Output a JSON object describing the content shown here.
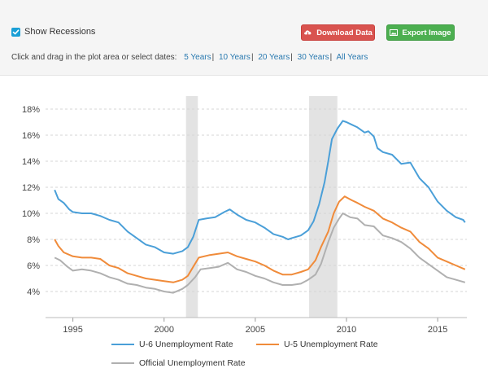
{
  "toolbar": {
    "show_recessions_label": "Show Recessions",
    "show_recessions_checked": true,
    "download_label": "Download Data",
    "export_label": "Export Image",
    "date_prompt": "Click and drag in the plot area or select dates:",
    "date_ranges": [
      "5 Years",
      "10 Years",
      "20 Years",
      "30 Years",
      "All Years"
    ],
    "download_color": "#d9534f",
    "export_color": "#4caf50",
    "link_color": "#2a7ab0",
    "icons": {
      "checkbox": "checkmark-icon",
      "download": "cloud-download-icon",
      "export": "image-icon"
    }
  },
  "chart_data": {
    "type": "line",
    "xlim": [
      1993.5,
      2016.6
    ],
    "ylim": [
      2,
      19
    ],
    "yticks": [
      4,
      6,
      8,
      10,
      12,
      14,
      16,
      18
    ],
    "ytick_labels": [
      "4%",
      "6%",
      "8%",
      "10%",
      "12%",
      "14%",
      "16%",
      "18%"
    ],
    "xticks": [
      1995,
      2000,
      2005,
      2010,
      2015
    ],
    "xtick_labels": [
      "1995",
      "2000",
      "2005",
      "2010",
      "2015"
    ],
    "grid": "horizontal-dashed",
    "recessions": [
      [
        2001.2,
        2001.85
      ],
      [
        2007.95,
        2009.5
      ]
    ],
    "recession_color": "#e3e3e3",
    "legend_position": "bottom",
    "series": [
      {
        "name": "U-6 Unemployment Rate",
        "color": "#4a9fd8",
        "points": [
          [
            1994.0,
            11.8
          ],
          [
            1994.2,
            11.1
          ],
          [
            1994.5,
            10.8
          ],
          [
            1994.8,
            10.3
          ],
          [
            1995.0,
            10.1
          ],
          [
            1995.5,
            10.0
          ],
          [
            1996.0,
            10.0
          ],
          [
            1996.5,
            9.8
          ],
          [
            1997.0,
            9.5
          ],
          [
            1997.5,
            9.3
          ],
          [
            1998.0,
            8.6
          ],
          [
            1998.5,
            8.1
          ],
          [
            1999.0,
            7.6
          ],
          [
            1999.5,
            7.4
          ],
          [
            2000.0,
            7.0
          ],
          [
            2000.5,
            6.9
          ],
          [
            2001.0,
            7.1
          ],
          [
            2001.3,
            7.4
          ],
          [
            2001.6,
            8.2
          ],
          [
            2001.9,
            9.5
          ],
          [
            2002.3,
            9.6
          ],
          [
            2002.8,
            9.7
          ],
          [
            2003.3,
            10.1
          ],
          [
            2003.6,
            10.3
          ],
          [
            2004.0,
            9.9
          ],
          [
            2004.5,
            9.5
          ],
          [
            2005.0,
            9.3
          ],
          [
            2005.5,
            8.9
          ],
          [
            2006.0,
            8.4
          ],
          [
            2006.5,
            8.2
          ],
          [
            2006.8,
            8.0
          ],
          [
            2007.0,
            8.1
          ],
          [
            2007.5,
            8.3
          ],
          [
            2007.9,
            8.7
          ],
          [
            2008.2,
            9.4
          ],
          [
            2008.5,
            10.7
          ],
          [
            2008.8,
            12.4
          ],
          [
            2009.0,
            14.0
          ],
          [
            2009.2,
            15.7
          ],
          [
            2009.5,
            16.5
          ],
          [
            2009.8,
            17.1
          ],
          [
            2010.0,
            17.0
          ],
          [
            2010.3,
            16.8
          ],
          [
            2010.6,
            16.6
          ],
          [
            2011.0,
            16.2
          ],
          [
            2011.2,
            16.3
          ],
          [
            2011.5,
            15.9
          ],
          [
            2011.7,
            15.0
          ],
          [
            2012.0,
            14.7
          ],
          [
            2012.5,
            14.5
          ],
          [
            2013.0,
            13.8
          ],
          [
            2013.5,
            13.9
          ],
          [
            2014.0,
            12.7
          ],
          [
            2014.5,
            12.0
          ],
          [
            2015.0,
            10.9
          ],
          [
            2015.5,
            10.2
          ],
          [
            2016.0,
            9.7
          ],
          [
            2016.4,
            9.5
          ],
          [
            2016.5,
            9.3
          ]
        ]
      },
      {
        "name": "U-5 Unemployment Rate",
        "color": "#f08b3a",
        "points": [
          [
            1994.0,
            8.0
          ],
          [
            1994.2,
            7.5
          ],
          [
            1994.5,
            7.0
          ],
          [
            1995.0,
            6.7
          ],
          [
            1995.5,
            6.6
          ],
          [
            1996.0,
            6.6
          ],
          [
            1996.5,
            6.5
          ],
          [
            1997.0,
            6.0
          ],
          [
            1997.5,
            5.8
          ],
          [
            1998.0,
            5.4
          ],
          [
            1998.5,
            5.2
          ],
          [
            1999.0,
            5.0
          ],
          [
            1999.5,
            4.9
          ],
          [
            2000.0,
            4.8
          ],
          [
            2000.5,
            4.7
          ],
          [
            2001.0,
            4.9
          ],
          [
            2001.3,
            5.2
          ],
          [
            2001.6,
            5.9
          ],
          [
            2001.9,
            6.6
          ],
          [
            2002.5,
            6.8
          ],
          [
            2003.0,
            6.9
          ],
          [
            2003.5,
            7.0
          ],
          [
            2004.0,
            6.7
          ],
          [
            2004.5,
            6.5
          ],
          [
            2005.0,
            6.3
          ],
          [
            2005.5,
            6.0
          ],
          [
            2006.0,
            5.6
          ],
          [
            2006.5,
            5.3
          ],
          [
            2007.0,
            5.3
          ],
          [
            2007.5,
            5.5
          ],
          [
            2007.9,
            5.7
          ],
          [
            2008.3,
            6.4
          ],
          [
            2008.6,
            7.4
          ],
          [
            2009.0,
            8.6
          ],
          [
            2009.3,
            10.0
          ],
          [
            2009.6,
            10.9
          ],
          [
            2009.9,
            11.3
          ],
          [
            2010.3,
            11.0
          ],
          [
            2010.6,
            10.8
          ],
          [
            2011.0,
            10.5
          ],
          [
            2011.5,
            10.2
          ],
          [
            2012.0,
            9.6
          ],
          [
            2012.5,
            9.3
          ],
          [
            2013.0,
            8.9
          ],
          [
            2013.5,
            8.6
          ],
          [
            2014.0,
            7.8
          ],
          [
            2014.5,
            7.3
          ],
          [
            2015.0,
            6.6
          ],
          [
            2015.5,
            6.3
          ],
          [
            2016.0,
            6.0
          ],
          [
            2016.5,
            5.7
          ]
        ]
      },
      {
        "name": "Official Unemployment Rate",
        "color": "#b0b0b0",
        "points": [
          [
            1994.0,
            6.6
          ],
          [
            1994.3,
            6.4
          ],
          [
            1994.7,
            5.9
          ],
          [
            1995.0,
            5.6
          ],
          [
            1995.5,
            5.7
          ],
          [
            1996.0,
            5.6
          ],
          [
            1996.5,
            5.4
          ],
          [
            1997.0,
            5.1
          ],
          [
            1997.5,
            4.9
          ],
          [
            1998.0,
            4.6
          ],
          [
            1998.5,
            4.5
          ],
          [
            1999.0,
            4.3
          ],
          [
            1999.5,
            4.2
          ],
          [
            2000.0,
            4.0
          ],
          [
            2000.5,
            3.9
          ],
          [
            2001.0,
            4.2
          ],
          [
            2001.3,
            4.5
          ],
          [
            2001.7,
            5.1
          ],
          [
            2002.0,
            5.7
          ],
          [
            2002.5,
            5.8
          ],
          [
            2003.0,
            5.9
          ],
          [
            2003.5,
            6.2
          ],
          [
            2004.0,
            5.7
          ],
          [
            2004.5,
            5.5
          ],
          [
            2005.0,
            5.2
          ],
          [
            2005.5,
            5.0
          ],
          [
            2006.0,
            4.7
          ],
          [
            2006.5,
            4.5
          ],
          [
            2007.0,
            4.5
          ],
          [
            2007.5,
            4.6
          ],
          [
            2007.9,
            4.9
          ],
          [
            2008.3,
            5.3
          ],
          [
            2008.6,
            6.1
          ],
          [
            2009.0,
            7.8
          ],
          [
            2009.3,
            8.9
          ],
          [
            2009.6,
            9.6
          ],
          [
            2009.8,
            10.0
          ],
          [
            2010.2,
            9.7
          ],
          [
            2010.6,
            9.6
          ],
          [
            2011.0,
            9.1
          ],
          [
            2011.5,
            9.0
          ],
          [
            2012.0,
            8.3
          ],
          [
            2012.5,
            8.1
          ],
          [
            2013.0,
            7.8
          ],
          [
            2013.5,
            7.3
          ],
          [
            2014.0,
            6.6
          ],
          [
            2014.5,
            6.1
          ],
          [
            2015.0,
            5.6
          ],
          [
            2015.5,
            5.1
          ],
          [
            2016.0,
            4.9
          ],
          [
            2016.5,
            4.7
          ]
        ]
      }
    ]
  }
}
